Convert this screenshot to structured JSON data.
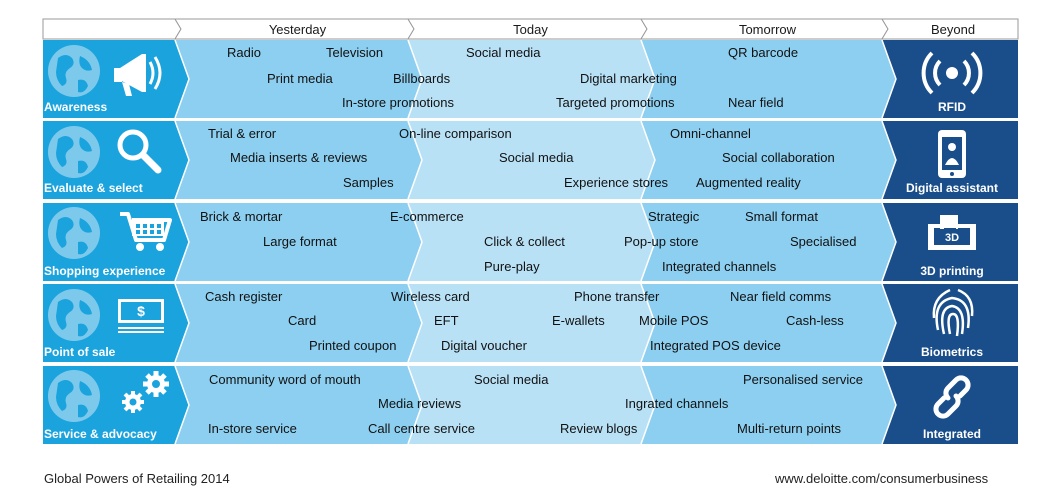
{
  "columns": [
    {
      "label": "Yesterday"
    },
    {
      "label": "Today"
    },
    {
      "label": "Tomorrow"
    },
    {
      "label": "Beyond"
    }
  ],
  "rows": [
    {
      "label": "Awareness",
      "beyond": "RFID",
      "items": [
        {
          "text": "Radio"
        },
        {
          "text": "Television"
        },
        {
          "text": "Print media"
        },
        {
          "text": "Billboards"
        },
        {
          "text": "In-store promotions"
        },
        {
          "text": "Social media"
        },
        {
          "text": "Digital marketing"
        },
        {
          "text": "Targeted promotions"
        },
        {
          "text": "QR barcode"
        },
        {
          "text": "Near field"
        }
      ]
    },
    {
      "label": "Evaluate & select",
      "beyond": "Digital assistant",
      "items": [
        {
          "text": "Trial & error"
        },
        {
          "text": "On-line comparison"
        },
        {
          "text": "Media inserts & reviews"
        },
        {
          "text": "Social media"
        },
        {
          "text": "Samples"
        },
        {
          "text": "Experience stores"
        },
        {
          "text": "Omni-channel"
        },
        {
          "text": "Social collaboration"
        },
        {
          "text": "Augmented reality"
        }
      ]
    },
    {
      "label": "Shopping experience",
      "beyond": "3D printing",
      "beyond_icon_text": "3D",
      "items": [
        {
          "text": "Brick & mortar"
        },
        {
          "text": "E-commerce"
        },
        {
          "text": "Large format"
        },
        {
          "text": "Click & collect"
        },
        {
          "text": "Pure-play"
        },
        {
          "text": "Strategic"
        },
        {
          "text": "Small format"
        },
        {
          "text": "Pop-up store"
        },
        {
          "text": "Specialised"
        },
        {
          "text": "Integrated channels"
        }
      ]
    },
    {
      "label": "Point of sale",
      "beyond": "Biometrics",
      "icon_text": "$",
      "items": [
        {
          "text": "Cash register"
        },
        {
          "text": "Wireless card"
        },
        {
          "text": "Card"
        },
        {
          "text": "Printed coupon"
        },
        {
          "text": "Phone transfer"
        },
        {
          "text": "EFT"
        },
        {
          "text": "E-wallets"
        },
        {
          "text": "Digital voucher"
        },
        {
          "text": "Near field comms"
        },
        {
          "text": "Mobile POS"
        },
        {
          "text": "Cash-less"
        },
        {
          "text": "Integrated POS device"
        }
      ]
    },
    {
      "label": "Service & advocacy",
      "beyond": "Integrated",
      "items": [
        {
          "text": "Community word of mouth"
        },
        {
          "text": "Media reviews"
        },
        {
          "text": "In-store service"
        },
        {
          "text": "Call centre service"
        },
        {
          "text": "Social media"
        },
        {
          "text": "Review blogs"
        },
        {
          "text": "Ingrated channels"
        },
        {
          "text": "Personalised service"
        },
        {
          "text": "Multi-return points"
        }
      ]
    }
  ],
  "footer": {
    "left": "Global Powers of Retailing 2014",
    "right": "www.deloitte.com/consumerbusiness"
  },
  "colors": {
    "label_column": "#1aa3dd",
    "yesterday": "#8dcff0",
    "today": "#b9e1f6",
    "tomorrow": "#8dcff0",
    "beyond": "#1a4e8a",
    "globe": "#7cc9ec",
    "header_border": "#a0a0a0"
  },
  "icons": {
    "row_globe": "globe-icon",
    "awareness": "megaphone-icon",
    "evaluate": "magnifier-icon",
    "shopping": "shopping-cart-icon",
    "pos": "money-icon",
    "service": "gears-icon",
    "rfid": "rfid-signal-icon",
    "digital_assistant": "smartphone-person-icon",
    "printing": "3d-printer-icon",
    "biometrics": "fingerprint-icon",
    "integrated": "chain-link-icon"
  }
}
